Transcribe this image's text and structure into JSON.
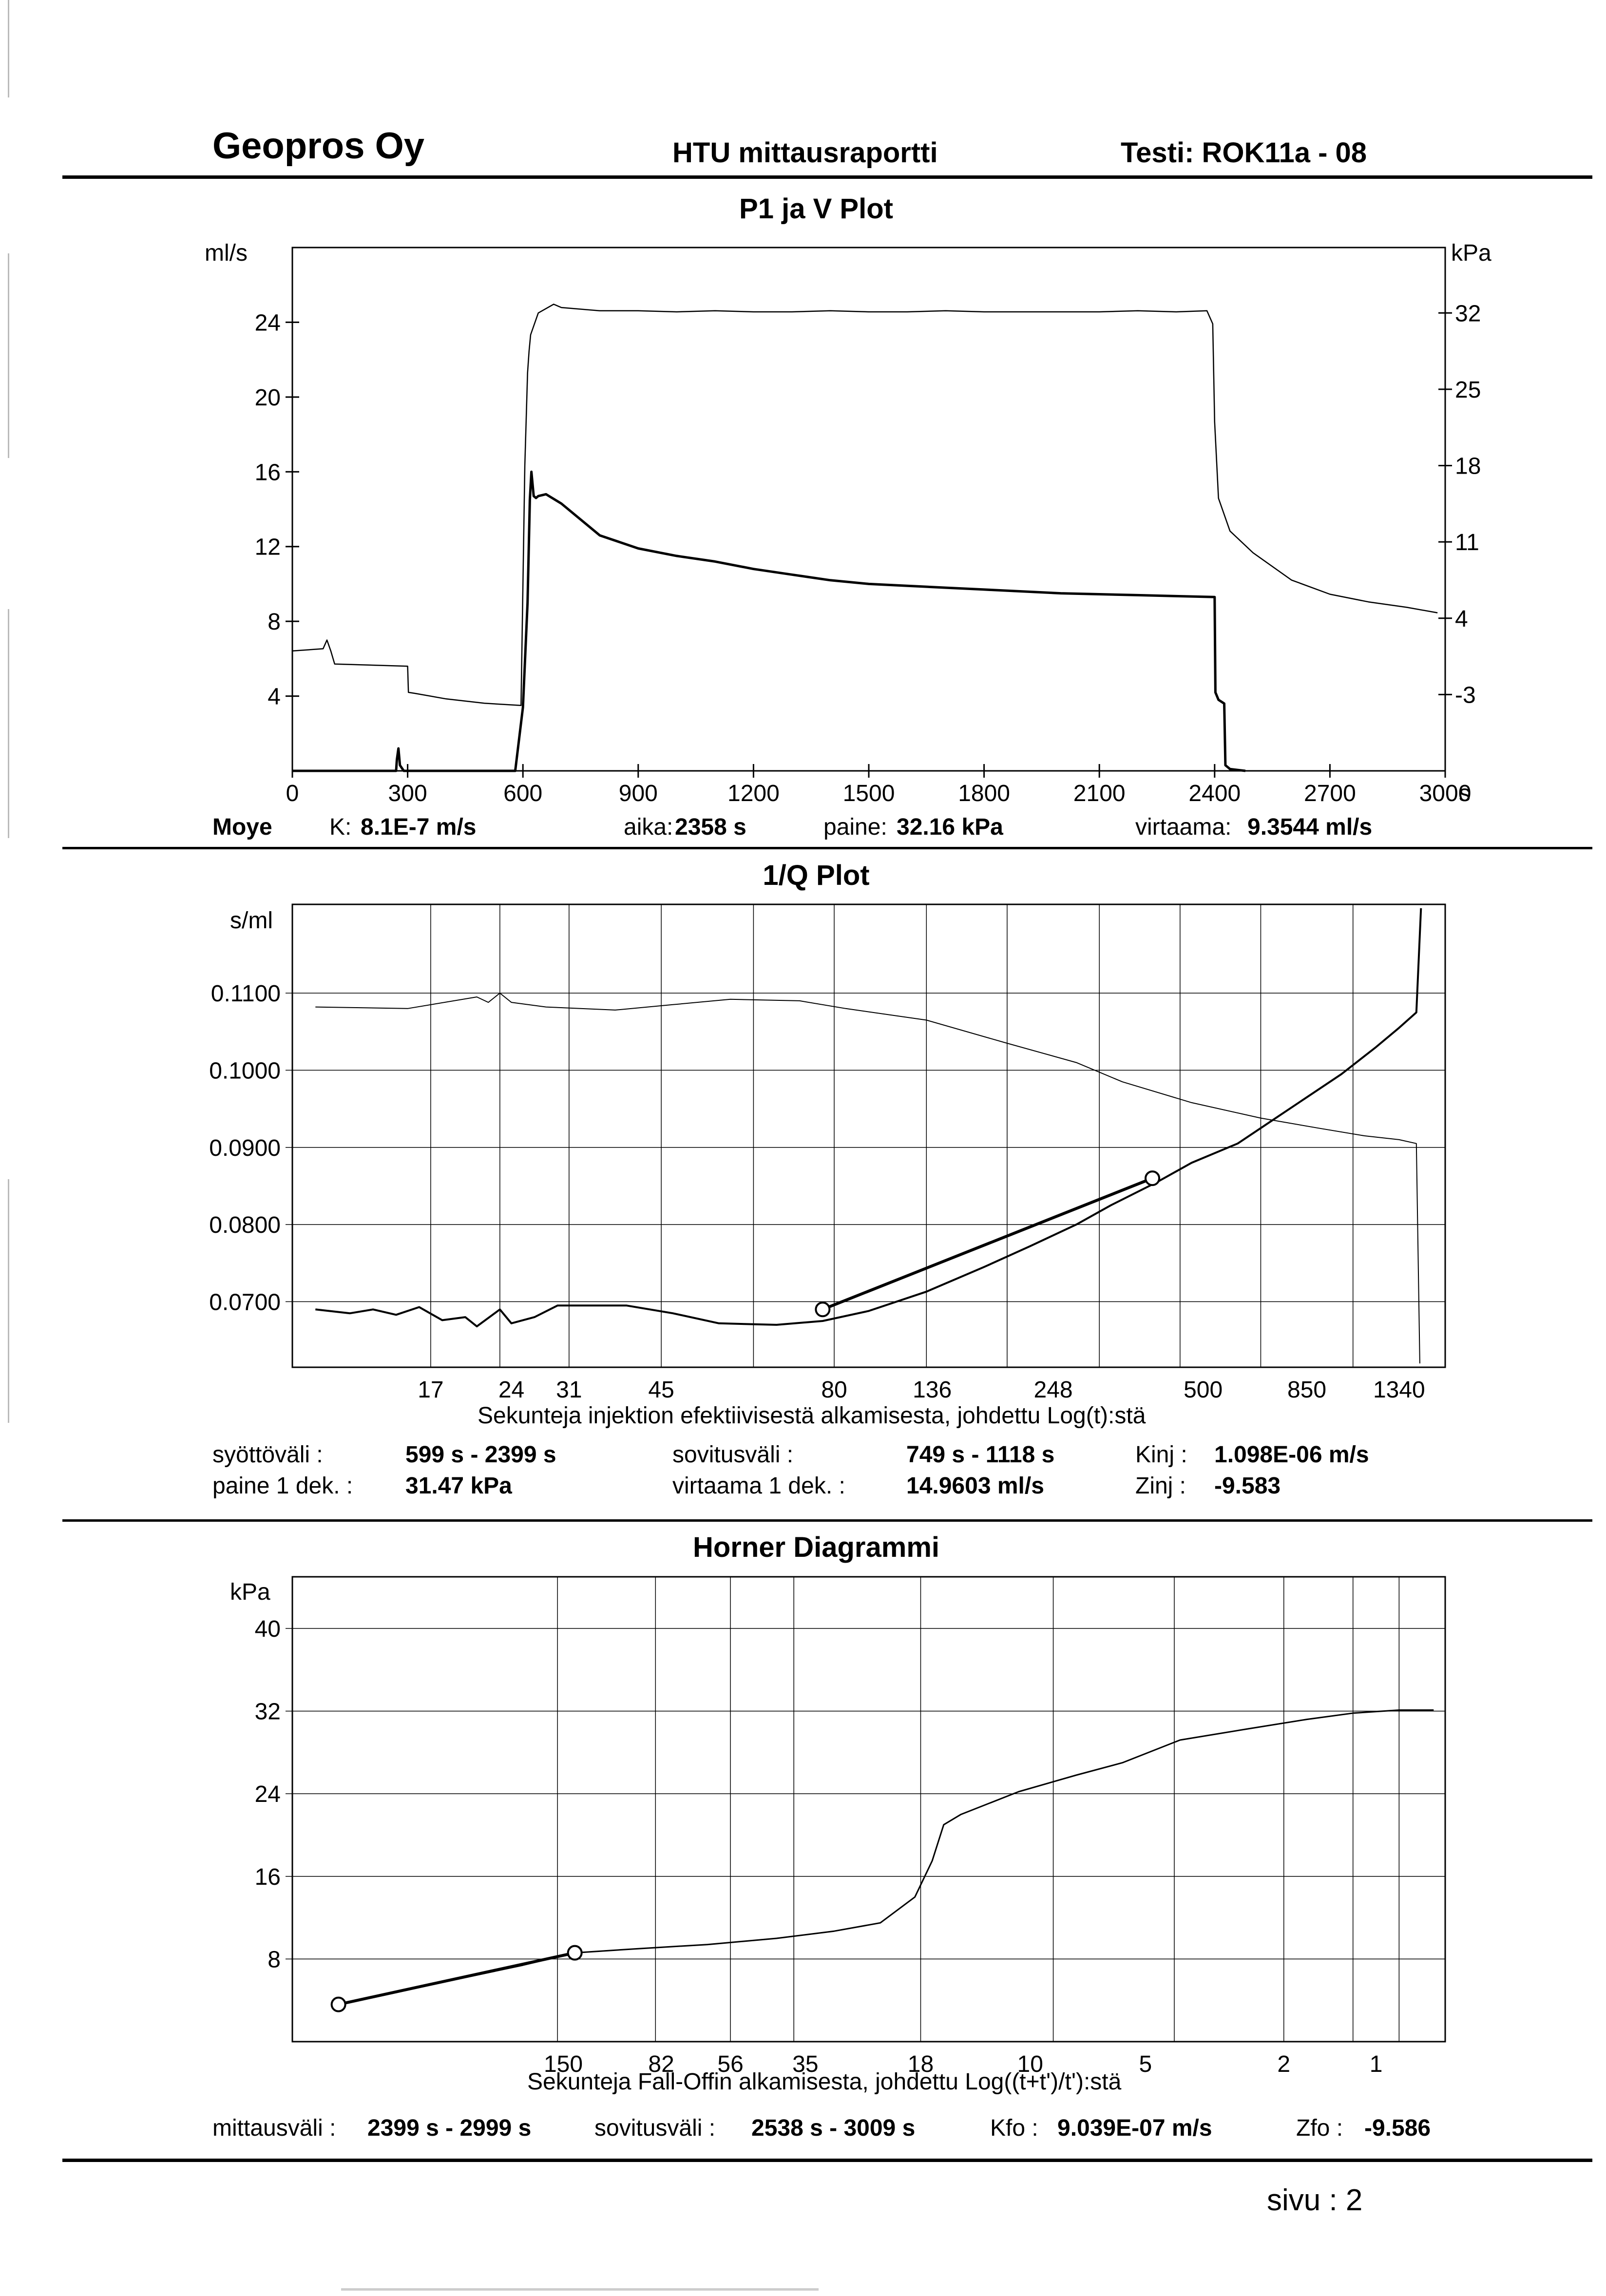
{
  "header": {
    "company": "Geopros Oy",
    "report": "HTU mittausraportti",
    "test": "Testi: ROK11a - 08"
  },
  "plot1": {
    "title": "P1 ja V Plot",
    "left_unit": "ml/s",
    "right_unit": "kPa",
    "x_unit": "s",
    "footer": {
      "name": "Moye",
      "k_label": "K:",
      "k_value": "8.1E-7 m/s",
      "aika_label": "aika:",
      "aika_value": "2358 s",
      "paine_label": "paine:",
      "paine_value": "32.16 kPa",
      "virtaama_label": "virtaama:",
      "virtaama_value": "9.3544 ml/s"
    }
  },
  "plot2": {
    "title": "1/Q Plot",
    "y_unit": "s/ml",
    "xlabel": "Sekunteja injektion efektiivisestä alkamisesta, johdettu Log(t):stä",
    "footer": {
      "syotto_label": "syöttöväli :",
      "syotto_value": "599 s -  2399 s",
      "paine_label": "paine 1 dek. :",
      "paine_value": "31.47 kPa",
      "sovitus_label": "sovitusväli :",
      "sovitus_value": "749 s  -  1118 s",
      "virtaama_label": "virtaama 1 dek. :",
      "virtaama_value": "14.9603 ml/s",
      "kinj_label": "Kinj :",
      "kinj_value": "1.098E-06 m/s",
      "zinj_label": "Zinj :",
      "zinj_value": "-9.583"
    }
  },
  "plot3": {
    "title": "Horner Diagrammi",
    "y_unit": "kPa",
    "xlabel": "Sekunteja Fall-Offin alkamisesta, johdettu Log((t+t')/t'):stä",
    "footer": {
      "mittaus_label": "mittausväli :",
      "mittaus_value": "2399 s -  2999 s",
      "sovitus_label": "sovitusväli :",
      "sovitus_value": "2538 s -  3009 s",
      "kfo_label": "Kfo :",
      "kfo_value": "9.039E-07 m/s",
      "zfo_label": "Zfo :",
      "zfo_value": "-9.586"
    }
  },
  "page_label": "sivu :  2",
  "chart_data": [
    {
      "type": "line",
      "title": "P1 ja V Plot",
      "xlim": [
        0,
        3000
      ],
      "x_ticks": [
        "0",
        "300",
        "600",
        "900",
        "1200",
        "1500",
        "1800",
        "2100",
        "2400",
        "2700",
        "3000"
      ],
      "ylim_left": [
        0,
        28
      ],
      "y_left_ticks": [
        "4",
        "8",
        "12",
        "16",
        "20",
        "24"
      ],
      "ylim_right": [
        -10,
        38
      ],
      "y_right_ticks": [
        "-3",
        "4",
        "11",
        "18",
        "25",
        "32"
      ],
      "series": [
        {
          "axis": "left",
          "x": [
            0,
            270,
            272,
            276,
            280,
            290,
            300,
            400,
            500,
            580,
            600,
            612,
            618,
            622,
            628,
            634,
            640,
            660,
            700,
            800,
            900,
            1000,
            1100,
            1200,
            1300,
            1400,
            1500,
            1600,
            1700,
            1800,
            1900,
            2000,
            2100,
            2200,
            2300,
            2400,
            2402,
            2410,
            2425,
            2428,
            2440,
            2480
          ],
          "y": [
            0,
            0,
            0.6,
            1.2,
            0.3,
            0,
            0,
            0,
            0,
            0,
            3.4,
            9.0,
            14.5,
            16.0,
            14.7,
            14.6,
            14.7,
            14.8,
            14.3,
            12.6,
            11.9,
            11.5,
            11.2,
            10.8,
            10.5,
            10.2,
            10.0,
            9.9,
            9.8,
            9.7,
            9.6,
            9.5,
            9.45,
            9.4,
            9.35,
            9.3,
            4.2,
            3.8,
            3.6,
            0.3,
            0.1,
            0
          ]
        },
        {
          "axis": "right",
          "x": [
            0,
            80,
            90,
            100,
            110,
            300,
            302,
            320,
            400,
            500,
            595,
            605,
            612,
            616,
            620,
            640,
            680,
            700,
            800,
            900,
            1000,
            1100,
            1200,
            1300,
            1400,
            1500,
            1600,
            1700,
            1800,
            1900,
            2000,
            2100,
            2200,
            2300,
            2380,
            2395,
            2400,
            2410,
            2440,
            2500,
            2600,
            2700,
            2800,
            2900,
            2980
          ],
          "y": [
            1.0,
            1.2,
            2.0,
            1.0,
            -0.2,
            -0.4,
            -2.8,
            -2.9,
            -3.4,
            -3.8,
            -4.0,
            18.0,
            26.5,
            28.5,
            30.0,
            32.0,
            32.8,
            32.5,
            32.2,
            32.2,
            32.1,
            32.2,
            32.1,
            32.1,
            32.2,
            32.1,
            32.1,
            32.2,
            32.1,
            32.1,
            32.1,
            32.1,
            32.2,
            32.1,
            32.2,
            31.0,
            22.0,
            15.0,
            12.0,
            10.0,
            7.5,
            6.2,
            5.5,
            5.0,
            4.5
          ]
        }
      ]
    },
    {
      "type": "line",
      "title": "1/Q Plot",
      "ylabel": "s/ml",
      "ylim": [
        0.0615,
        0.1215
      ],
      "y_ticks": [
        "0.0700",
        "0.0800",
        "0.0900",
        "0.1000",
        "0.1100"
      ],
      "x_tick_labels": [
        "17",
        "24",
        "31",
        "45",
        "80",
        "136",
        "248",
        "500",
        "850",
        "1340"
      ],
      "series": [
        {
          "points_log_fraction": [
            [
              0.02,
              0.069
            ],
            [
              0.05,
              0.0685
            ],
            [
              0.07,
              0.069
            ],
            [
              0.09,
              0.0683
            ],
            [
              0.11,
              0.0693
            ],
            [
              0.13,
              0.0676
            ],
            [
              0.15,
              0.068
            ],
            [
              0.16,
              0.0668
            ],
            [
              0.18,
              0.069
            ],
            [
              0.19,
              0.0672
            ],
            [
              0.21,
              0.068
            ],
            [
              0.23,
              0.0695
            ],
            [
              0.29,
              0.0695
            ],
            [
              0.33,
              0.0685
            ],
            [
              0.37,
              0.0672
            ],
            [
              0.42,
              0.067
            ],
            [
              0.46,
              0.0675
            ],
            [
              0.5,
              0.0688
            ],
            [
              0.55,
              0.0713
            ],
            [
              0.6,
              0.0745
            ],
            [
              0.64,
              0.0772
            ],
            [
              0.68,
              0.08
            ],
            [
              0.71,
              0.0825
            ],
            [
              0.75,
              0.0855
            ],
            [
              0.78,
              0.088
            ],
            [
              0.82,
              0.0905
            ],
            [
              0.85,
              0.0935
            ],
            [
              0.88,
              0.0965
            ],
            [
              0.91,
              0.0995
            ],
            [
              0.94,
              0.103
            ],
            [
              0.96,
              0.1055
            ],
            [
              0.975,
              0.1075
            ],
            [
              0.979,
              0.121
            ]
          ],
          "values_note": "Sekunteja injektion efektiivisestä alkamisesta, johdettu Log(t):stä"
        },
        {
          "points_log_fraction": [
            [
              0.02,
              0.1082
            ],
            [
              0.1,
              0.108
            ],
            [
              0.16,
              0.1095
            ],
            [
              0.17,
              0.1088
            ],
            [
              0.18,
              0.11
            ],
            [
              0.19,
              0.1088
            ],
            [
              0.22,
              0.1082
            ],
            [
              0.28,
              0.1078
            ],
            [
              0.33,
              0.1085
            ],
            [
              0.38,
              0.1092
            ],
            [
              0.44,
              0.109
            ],
            [
              0.48,
              0.108
            ],
            [
              0.55,
              0.1065
            ],
            [
              0.62,
              0.1035
            ],
            [
              0.68,
              0.101
            ],
            [
              0.72,
              0.0985
            ],
            [
              0.78,
              0.0958
            ],
            [
              0.84,
              0.0938
            ],
            [
              0.89,
              0.0925
            ],
            [
              0.93,
              0.0915
            ],
            [
              0.96,
              0.091
            ],
            [
              0.975,
              0.0905
            ],
            [
              0.978,
              0.062
            ]
          ]
        },
        {
          "name": "sovitus",
          "fit_points_log_fraction": [
            [
              0.46,
              0.069
            ],
            [
              0.746,
              0.086
            ]
          ]
        }
      ]
    },
    {
      "type": "line",
      "title": "Horner Diagrammi",
      "ylabel": "kPa",
      "ylim": [
        0,
        45
      ],
      "y_ticks": [
        "8",
        "16",
        "24",
        "32",
        "40"
      ],
      "x_tick_labels": [
        "150",
        "82",
        "56",
        "35",
        "18",
        "10",
        "5",
        "2",
        "1"
      ],
      "series": [
        {
          "points_log_fraction": [
            [
              0.04,
              3.6
            ],
            [
              0.12,
              5.5
            ],
            [
              0.2,
              7.4
            ],
            [
              0.245,
              8.6
            ],
            [
              0.3,
              9.0
            ],
            [
              0.36,
              9.4
            ],
            [
              0.42,
              10.0
            ],
            [
              0.47,
              10.7
            ],
            [
              0.51,
              11.5
            ],
            [
              0.54,
              14.0
            ],
            [
              0.555,
              17.5
            ],
            [
              0.565,
              21.0
            ],
            [
              0.58,
              22.0
            ],
            [
              0.63,
              24.2
            ],
            [
              0.68,
              25.8
            ],
            [
              0.72,
              27.0
            ],
            [
              0.77,
              29.2
            ],
            [
              0.83,
              30.3
            ],
            [
              0.88,
              31.2
            ],
            [
              0.92,
              31.8
            ],
            [
              0.96,
              32.1
            ],
            [
              0.99,
              32.1
            ]
          ]
        },
        {
          "name": "sovitus",
          "fit_points_log_fraction": [
            [
              0.04,
              3.6
            ],
            [
              0.245,
              8.6
            ]
          ]
        }
      ]
    }
  ]
}
